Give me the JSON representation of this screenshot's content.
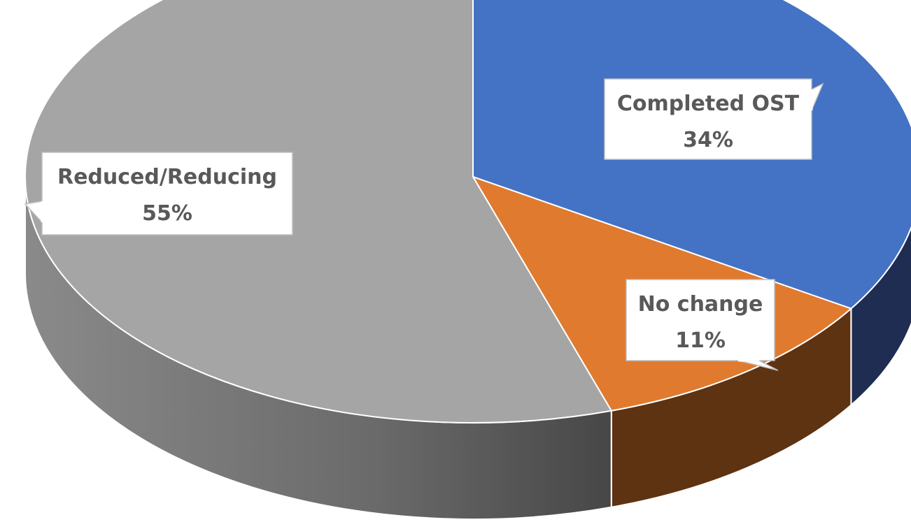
{
  "chart_data": {
    "type": "pie",
    "style": "3d",
    "slices": [
      {
        "label": "Completed OST",
        "percent_label": "34%",
        "value": 34,
        "top_color": "#4472C4",
        "side_color": "#1F2D52"
      },
      {
        "label": "No change",
        "percent_label": "11%",
        "value": 11,
        "top_color": "#E07A2E",
        "side_color": "#5E3312"
      },
      {
        "label": "Reduced/Reducing",
        "percent_label": "55%",
        "value": 55,
        "top_color": "#A5A5A5",
        "side_color": "#666666"
      }
    ],
    "start_position": "top",
    "direction": "clockwise",
    "data_labels": "category name and percentage in callout boxes",
    "legend": "none"
  }
}
